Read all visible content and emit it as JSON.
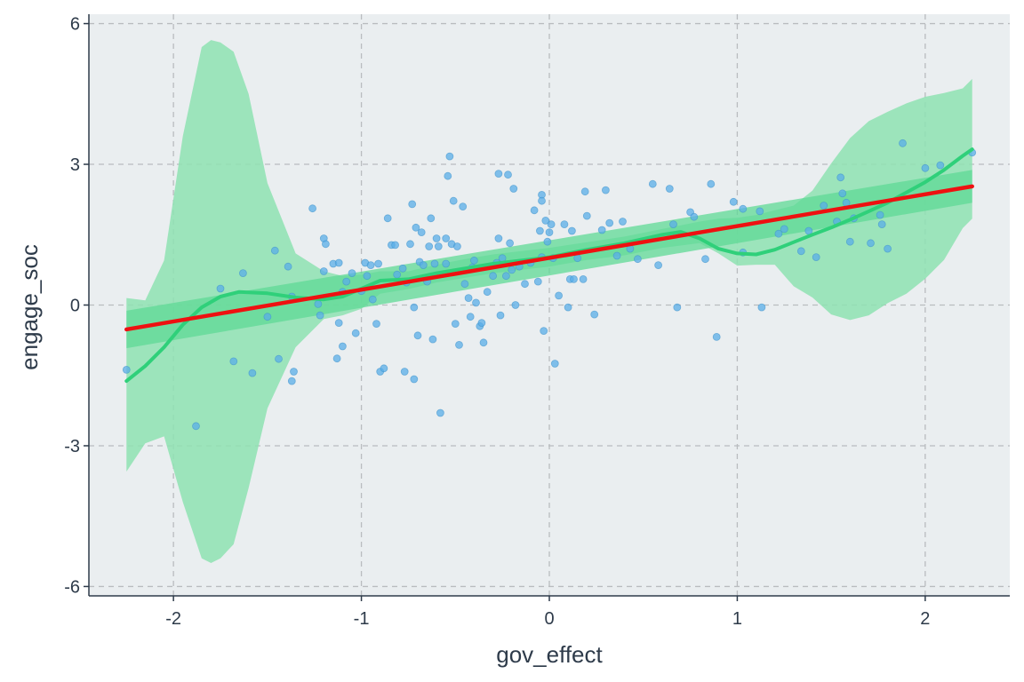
{
  "chart_data": {
    "type": "scatter",
    "title": "",
    "xlabel": "gov_effect",
    "ylabel": "engage_soc",
    "xlim": [
      -2.45,
      2.45
    ],
    "ylim": [
      -6.2,
      6.2
    ],
    "xticks": [
      -2,
      -1,
      0,
      1,
      2
    ],
    "xtick_labels": [
      "-2",
      "-1",
      "0",
      "1",
      "2"
    ],
    "yticks": [
      -6,
      -3,
      0,
      3,
      6
    ],
    "ytick_labels": [
      "-6",
      "-3",
      "0",
      "3",
      "6"
    ],
    "grid": true,
    "colors": {
      "panel_background": "#eaeef0",
      "points": "#5aaee8",
      "points_edge": "#3d92cc",
      "loess_line": "#2fd07a",
      "loess_band": "#8ee2b2",
      "linear_line": "#ee1111",
      "linear_band": "#5fd995"
    },
    "scatter_points": [
      [
        -2.25,
        -1.38
      ],
      [
        -1.88,
        -2.58
      ],
      [
        -1.75,
        0.35
      ],
      [
        -1.68,
        -1.2
      ],
      [
        -1.63,
        0.68
      ],
      [
        -1.58,
        -1.45
      ],
      [
        -1.5,
        -0.25
      ],
      [
        -1.46,
        1.16
      ],
      [
        -1.44,
        -1.15
      ],
      [
        -1.39,
        0.82
      ],
      [
        -1.37,
        0.18
      ],
      [
        -1.37,
        -1.62
      ],
      [
        -1.36,
        -1.42
      ],
      [
        -1.26,
        2.06
      ],
      [
        -1.23,
        0.02
      ],
      [
        -1.22,
        -0.22
      ],
      [
        -1.2,
        1.42
      ],
      [
        -1.2,
        0.72
      ],
      [
        -1.19,
        1.3
      ],
      [
        -1.15,
        0.88
      ],
      [
        -1.12,
        0.9
      ],
      [
        -1.13,
        -1.14
      ],
      [
        -1.12,
        -0.38
      ],
      [
        -1.1,
        0.28
      ],
      [
        -1.1,
        -0.88
      ],
      [
        -1.08,
        0.5
      ],
      [
        -1.05,
        0.68
      ],
      [
        -1.03,
        -0.6
      ],
      [
        -1.0,
        0.3
      ],
      [
        -0.98,
        0.9
      ],
      [
        -0.97,
        0.62
      ],
      [
        -0.95,
        0.85
      ],
      [
        -0.94,
        0.12
      ],
      [
        -0.92,
        -0.4
      ],
      [
        -0.91,
        0.88
      ],
      [
        -0.9,
        -1.42
      ],
      [
        -0.88,
        -1.35
      ],
      [
        -0.86,
        1.85
      ],
      [
        -0.84,
        1.28
      ],
      [
        -0.82,
        1.28
      ],
      [
        -0.81,
        0.65
      ],
      [
        -0.78,
        0.78
      ],
      [
        -0.77,
        -1.42
      ],
      [
        -0.76,
        0.48
      ],
      [
        -0.74,
        1.3
      ],
      [
        -0.73,
        2.15
      ],
      [
        -0.72,
        -0.05
      ],
      [
        -0.72,
        -1.58
      ],
      [
        -0.71,
        1.65
      ],
      [
        -0.7,
        -0.65
      ],
      [
        -0.69,
        0.92
      ],
      [
        -0.68,
        1.55
      ],
      [
        -0.67,
        0.85
      ],
      [
        -0.65,
        0.5
      ],
      [
        -0.64,
        1.25
      ],
      [
        -0.63,
        1.85
      ],
      [
        -0.62,
        -0.73
      ],
      [
        -0.61,
        0.88
      ],
      [
        -0.6,
        1.42
      ],
      [
        -0.59,
        1.25
      ],
      [
        -0.58,
        -2.3
      ],
      [
        -0.55,
        0.88
      ],
      [
        -0.55,
        1.42
      ],
      [
        -0.54,
        2.75
      ],
      [
        -0.53,
        3.17
      ],
      [
        -0.52,
        1.3
      ],
      [
        -0.51,
        2.22
      ],
      [
        -0.5,
        -0.4
      ],
      [
        -0.49,
        1.25
      ],
      [
        -0.48,
        -0.85
      ],
      [
        -0.46,
        2.1
      ],
      [
        -0.45,
        0.45
      ],
      [
        -0.43,
        0.15
      ],
      [
        -0.42,
        -0.25
      ],
      [
        -0.41,
        0.8
      ],
      [
        -0.4,
        0.95
      ],
      [
        -0.39,
        0.05
      ],
      [
        -0.37,
        -0.45
      ],
      [
        -0.36,
        -0.38
      ],
      [
        -0.35,
        -0.8
      ],
      [
        -0.33,
        0.28
      ],
      [
        -0.3,
        0.62
      ],
      [
        -0.28,
        0.9
      ],
      [
        -0.27,
        2.8
      ],
      [
        -0.27,
        1.42
      ],
      [
        -0.26,
        -0.22
      ],
      [
        -0.25,
        1.0
      ],
      [
        -0.23,
        0.62
      ],
      [
        -0.22,
        2.78
      ],
      [
        -0.21,
        1.32
      ],
      [
        -0.2,
        0.75
      ],
      [
        -0.19,
        2.48
      ],
      [
        -0.18,
        0.0
      ],
      [
        -0.16,
        0.82
      ],
      [
        -0.13,
        0.45
      ],
      [
        -0.1,
        0.9
      ],
      [
        -0.08,
        2.02
      ],
      [
        -0.06,
        0.5
      ],
      [
        -0.05,
        1.58
      ],
      [
        -0.04,
        2.35
      ],
      [
        -0.04,
        2.22
      ],
      [
        -0.04,
        1.02
      ],
      [
        -0.03,
        -0.55
      ],
      [
        -0.02,
        1.8
      ],
      [
        -0.01,
        1.35
      ],
      [
        0.0,
        1.55
      ],
      [
        0.01,
        1.72
      ],
      [
        0.02,
        1.0
      ],
      [
        0.03,
        -1.25
      ],
      [
        0.05,
        0.2
      ],
      [
        0.08,
        1.72
      ],
      [
        0.1,
        -0.05
      ],
      [
        0.11,
        0.55
      ],
      [
        0.12,
        1.58
      ],
      [
        0.13,
        0.55
      ],
      [
        0.15,
        1.0
      ],
      [
        0.18,
        0.55
      ],
      [
        0.19,
        2.42
      ],
      [
        0.2,
        1.9
      ],
      [
        0.24,
        -0.2
      ],
      [
        0.28,
        1.6
      ],
      [
        0.3,
        2.45
      ],
      [
        0.32,
        1.75
      ],
      [
        0.36,
        1.05
      ],
      [
        0.39,
        1.78
      ],
      [
        0.43,
        1.2
      ],
      [
        0.47,
        0.98
      ],
      [
        0.55,
        2.58
      ],
      [
        0.58,
        0.85
      ],
      [
        0.64,
        2.48
      ],
      [
        0.66,
        1.72
      ],
      [
        0.68,
        -0.05
      ],
      [
        0.75,
        1.98
      ],
      [
        0.77,
        1.88
      ],
      [
        0.83,
        0.98
      ],
      [
        0.86,
        2.58
      ],
      [
        0.89,
        -0.68
      ],
      [
        0.98,
        2.2
      ],
      [
        1.03,
        2.05
      ],
      [
        1.03,
        1.12
      ],
      [
        1.12,
        2.0
      ],
      [
        1.13,
        -0.05
      ],
      [
        1.22,
        1.52
      ],
      [
        1.25,
        1.62
      ],
      [
        1.34,
        1.15
      ],
      [
        1.38,
        1.58
      ],
      [
        1.42,
        1.02
      ],
      [
        1.46,
        2.12
      ],
      [
        1.53,
        1.78
      ],
      [
        1.55,
        2.72
      ],
      [
        1.56,
        2.38
      ],
      [
        1.58,
        2.18
      ],
      [
        1.6,
        1.35
      ],
      [
        1.62,
        1.85
      ],
      [
        1.71,
        1.32
      ],
      [
        1.76,
        1.92
      ],
      [
        1.77,
        1.72
      ],
      [
        1.8,
        1.2
      ],
      [
        1.88,
        3.45
      ],
      [
        2.0,
        2.92
      ],
      [
        2.08,
        2.98
      ],
      [
        2.25,
        3.25
      ]
    ],
    "loess_line": [
      [
        -2.25,
        -1.62
      ],
      [
        -2.15,
        -1.3
      ],
      [
        -2.05,
        -0.9
      ],
      [
        -1.95,
        -0.42
      ],
      [
        -1.85,
        -0.05
      ],
      [
        -1.75,
        0.18
      ],
      [
        -1.65,
        0.28
      ],
      [
        -1.5,
        0.25
      ],
      [
        -1.35,
        0.16
      ],
      [
        -1.2,
        0.12
      ],
      [
        -1.1,
        0.18
      ],
      [
        -1.0,
        0.35
      ],
      [
        -0.9,
        0.52
      ],
      [
        -0.75,
        0.55
      ],
      [
        -0.6,
        0.68
      ],
      [
        -0.45,
        0.78
      ],
      [
        -0.3,
        0.88
      ],
      [
        -0.15,
        0.95
      ],
      [
        0.0,
        1.02
      ],
      [
        0.2,
        1.18
      ],
      [
        0.4,
        1.32
      ],
      [
        0.6,
        1.5
      ],
      [
        0.7,
        1.56
      ],
      [
        0.8,
        1.42
      ],
      [
        0.9,
        1.2
      ],
      [
        1.0,
        1.1
      ],
      [
        1.1,
        1.08
      ],
      [
        1.2,
        1.18
      ],
      [
        1.3,
        1.34
      ],
      [
        1.4,
        1.5
      ],
      [
        1.5,
        1.65
      ],
      [
        1.6,
        1.82
      ],
      [
        1.7,
        2.0
      ],
      [
        1.8,
        2.18
      ],
      [
        1.9,
        2.4
      ],
      [
        2.0,
        2.62
      ],
      [
        2.1,
        2.88
      ],
      [
        2.2,
        3.18
      ],
      [
        2.25,
        3.32
      ]
    ],
    "loess_band": {
      "x": [
        -2.25,
        -2.15,
        -2.05,
        -1.95,
        -1.85,
        -1.8,
        -1.75,
        -1.68,
        -1.6,
        -1.5,
        -1.35,
        -1.2,
        -1.1,
        -1.0,
        -0.9,
        -0.75,
        -0.6,
        -0.45,
        -0.3,
        -0.15,
        0.0,
        0.2,
        0.4,
        0.6,
        0.8,
        0.9,
        1.0,
        1.1,
        1.2,
        1.3,
        1.4,
        1.5,
        1.6,
        1.7,
        1.8,
        1.9,
        2.0,
        2.1,
        2.2,
        2.25
      ],
      "upper": [
        0.15,
        0.1,
        0.95,
        3.6,
        5.5,
        5.65,
        5.6,
        5.4,
        4.5,
        2.6,
        1.1,
        0.72,
        0.62,
        0.65,
        0.72,
        0.72,
        0.86,
        0.98,
        1.08,
        1.15,
        1.22,
        1.34,
        1.46,
        1.62,
        1.78,
        1.84,
        1.86,
        1.92,
        2.02,
        2.12,
        2.44,
        3.02,
        3.56,
        3.92,
        4.12,
        4.3,
        4.44,
        4.52,
        4.62,
        4.82
      ],
      "lower": [
        -3.55,
        -2.95,
        -2.8,
        -4.2,
        -5.4,
        -5.5,
        -5.4,
        -5.1,
        -3.9,
        -2.2,
        -0.9,
        -0.3,
        -0.22,
        -0.08,
        0.24,
        0.34,
        0.48,
        0.58,
        0.68,
        0.75,
        0.82,
        0.96,
        1.06,
        1.22,
        1.32,
        1.1,
        0.84,
        0.86,
        0.86,
        0.4,
        0.16,
        -0.2,
        -0.32,
        -0.22,
        0.04,
        0.24,
        0.56,
        0.96,
        1.64,
        1.84
      ]
    },
    "linear_fit": {
      "x": [
        -2.25,
        2.25
      ],
      "y": [
        -0.52,
        2.53
      ],
      "band_upper": [
        -0.12,
        2.88
      ],
      "band_lower": [
        -0.92,
        2.18
      ]
    }
  }
}
